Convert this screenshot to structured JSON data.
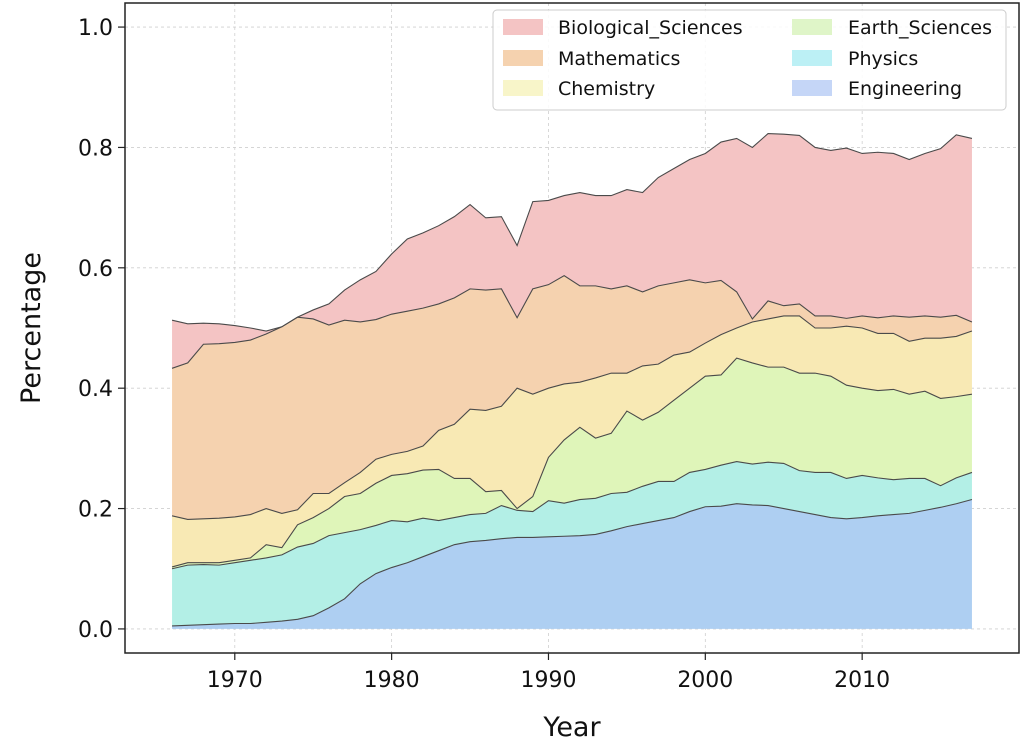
{
  "chart_data": {
    "type": "area",
    "stacked": true,
    "title": "",
    "xlabel": "Year",
    "ylabel": "Percentage",
    "xlim": [
      1963,
      2020
    ],
    "ylim": [
      -0.04,
      1.04
    ],
    "xticks": [
      1970,
      1980,
      1990,
      2000,
      2010
    ],
    "yticks": [
      0.0,
      0.2,
      0.4,
      0.6,
      0.8,
      1.0
    ],
    "ytick_labels": [
      "0.0",
      "0.2",
      "0.4",
      "0.6",
      "0.8",
      "1.0"
    ],
    "grid": true,
    "legend_position": "top-right",
    "legend_columns": 2,
    "x": [
      1966,
      1967,
      1968,
      1969,
      1970,
      1971,
      1972,
      1973,
      1974,
      1975,
      1976,
      1977,
      1978,
      1979,
      1980,
      1981,
      1982,
      1983,
      1984,
      1985,
      1986,
      1987,
      1988,
      1989,
      1990,
      1991,
      1992,
      1993,
      1994,
      1995,
      1996,
      1997,
      1998,
      1999,
      2000,
      2001,
      2002,
      2003,
      2004,
      2005,
      2006,
      2007,
      2008,
      2009,
      2010,
      2011,
      2012,
      2013,
      2014,
      2015,
      2016,
      2017
    ],
    "series": [
      {
        "name": "Engineering",
        "color": "#aecff2",
        "values": [
          0.005,
          0.006,
          0.007,
          0.008,
          0.009,
          0.009,
          0.011,
          0.013,
          0.016,
          0.022,
          0.035,
          0.05,
          0.075,
          0.092,
          0.102,
          0.11,
          0.12,
          0.13,
          0.14,
          0.145,
          0.147,
          0.15,
          0.152,
          0.152,
          0.153,
          0.154,
          0.155,
          0.157,
          0.163,
          0.17,
          0.175,
          0.18,
          0.185,
          0.195,
          0.203,
          0.204,
          0.208,
          0.206,
          0.205,
          0.2,
          0.195,
          0.19,
          0.185,
          0.183,
          0.185,
          0.188,
          0.19,
          0.192,
          0.197,
          0.202,
          0.208,
          0.215
        ]
      },
      {
        "name": "Physics",
        "color": "#b3efe6",
        "values": [
          0.095,
          0.1,
          0.1,
          0.098,
          0.101,
          0.105,
          0.107,
          0.11,
          0.12,
          0.12,
          0.12,
          0.11,
          0.09,
          0.08,
          0.078,
          0.068,
          0.064,
          0.05,
          0.045,
          0.045,
          0.045,
          0.055,
          0.045,
          0.043,
          0.06,
          0.055,
          0.06,
          0.06,
          0.062,
          0.057,
          0.062,
          0.065,
          0.06,
          0.065,
          0.062,
          0.068,
          0.07,
          0.068,
          0.072,
          0.075,
          0.068,
          0.07,
          0.075,
          0.067,
          0.07,
          0.063,
          0.058,
          0.058,
          0.053,
          0.036,
          0.043,
          0.045
        ]
      },
      {
        "name": "Earth_Sciences",
        "color": "#dff5b9",
        "values": [
          0.003,
          0.004,
          0.003,
          0.004,
          0.004,
          0.004,
          0.022,
          0.012,
          0.037,
          0.043,
          0.045,
          0.06,
          0.06,
          0.07,
          0.075,
          0.08,
          0.08,
          0.085,
          0.065,
          0.06,
          0.036,
          0.025,
          0.003,
          0.025,
          0.072,
          0.105,
          0.12,
          0.1,
          0.1,
          0.135,
          0.11,
          0.115,
          0.135,
          0.14,
          0.155,
          0.15,
          0.172,
          0.168,
          0.158,
          0.16,
          0.162,
          0.165,
          0.16,
          0.155,
          0.145,
          0.145,
          0.15,
          0.14,
          0.145,
          0.145,
          0.135,
          0.13
        ]
      },
      {
        "name": "Chemistry",
        "color": "#f8e9b4",
        "values": [
          0.085,
          0.072,
          0.073,
          0.074,
          0.072,
          0.072,
          0.06,
          0.057,
          0.025,
          0.04,
          0.025,
          0.023,
          0.035,
          0.04,
          0.035,
          0.037,
          0.04,
          0.065,
          0.09,
          0.115,
          0.135,
          0.14,
          0.2,
          0.17,
          0.115,
          0.093,
          0.075,
          0.1,
          0.1,
          0.063,
          0.09,
          0.08,
          0.075,
          0.06,
          0.055,
          0.067,
          0.05,
          0.068,
          0.08,
          0.085,
          0.095,
          0.075,
          0.08,
          0.098,
          0.1,
          0.095,
          0.093,
          0.088,
          0.088,
          0.1,
          0.1,
          0.105
        ]
      },
      {
        "name": "Mathematics",
        "color": "#f5d2af",
        "values": [
          0.245,
          0.26,
          0.29,
          0.29,
          0.29,
          0.29,
          0.29,
          0.31,
          0.32,
          0.29,
          0.28,
          0.27,
          0.25,
          0.232,
          0.233,
          0.233,
          0.229,
          0.21,
          0.21,
          0.2,
          0.2,
          0.195,
          0.117,
          0.175,
          0.172,
          0.18,
          0.16,
          0.153,
          0.14,
          0.145,
          0.123,
          0.13,
          0.12,
          0.12,
          0.1,
          0.09,
          0.06,
          0.005,
          0.03,
          0.017,
          0.02,
          0.02,
          0.02,
          0.013,
          0.02,
          0.026,
          0.029,
          0.04,
          0.037,
          0.035,
          0.035,
          0.015
        ]
      },
      {
        "name": "Biological_Sciences",
        "color": "#f4c4c4",
        "values": [
          0.08,
          0.065,
          0.035,
          0.033,
          0.028,
          0.02,
          0.005,
          0.0,
          0.0,
          0.015,
          0.035,
          0.05,
          0.07,
          0.08,
          0.1,
          0.12,
          0.125,
          0.13,
          0.135,
          0.14,
          0.12,
          0.12,
          0.12,
          0.145,
          0.14,
          0.133,
          0.155,
          0.15,
          0.155,
          0.16,
          0.165,
          0.18,
          0.19,
          0.2,
          0.215,
          0.23,
          0.255,
          0.285,
          0.278,
          0.285,
          0.28,
          0.28,
          0.275,
          0.283,
          0.27,
          0.275,
          0.27,
          0.262,
          0.27,
          0.28,
          0.3,
          0.305
        ]
      }
    ],
    "legend_order": [
      "Biological_Sciences",
      "Earth_Sciences",
      "Mathematics",
      "Physics",
      "Chemistry",
      "Engineering"
    ],
    "legend_colors": {
      "Biological_Sciences": "#f4c4c4",
      "Mathematics": "#f5d2af",
      "Chemistry": "#f8f5c9",
      "Earth_Sciences": "#dff5c8",
      "Physics": "#bcf0f5",
      "Engineering": "#c5d6f7"
    }
  }
}
